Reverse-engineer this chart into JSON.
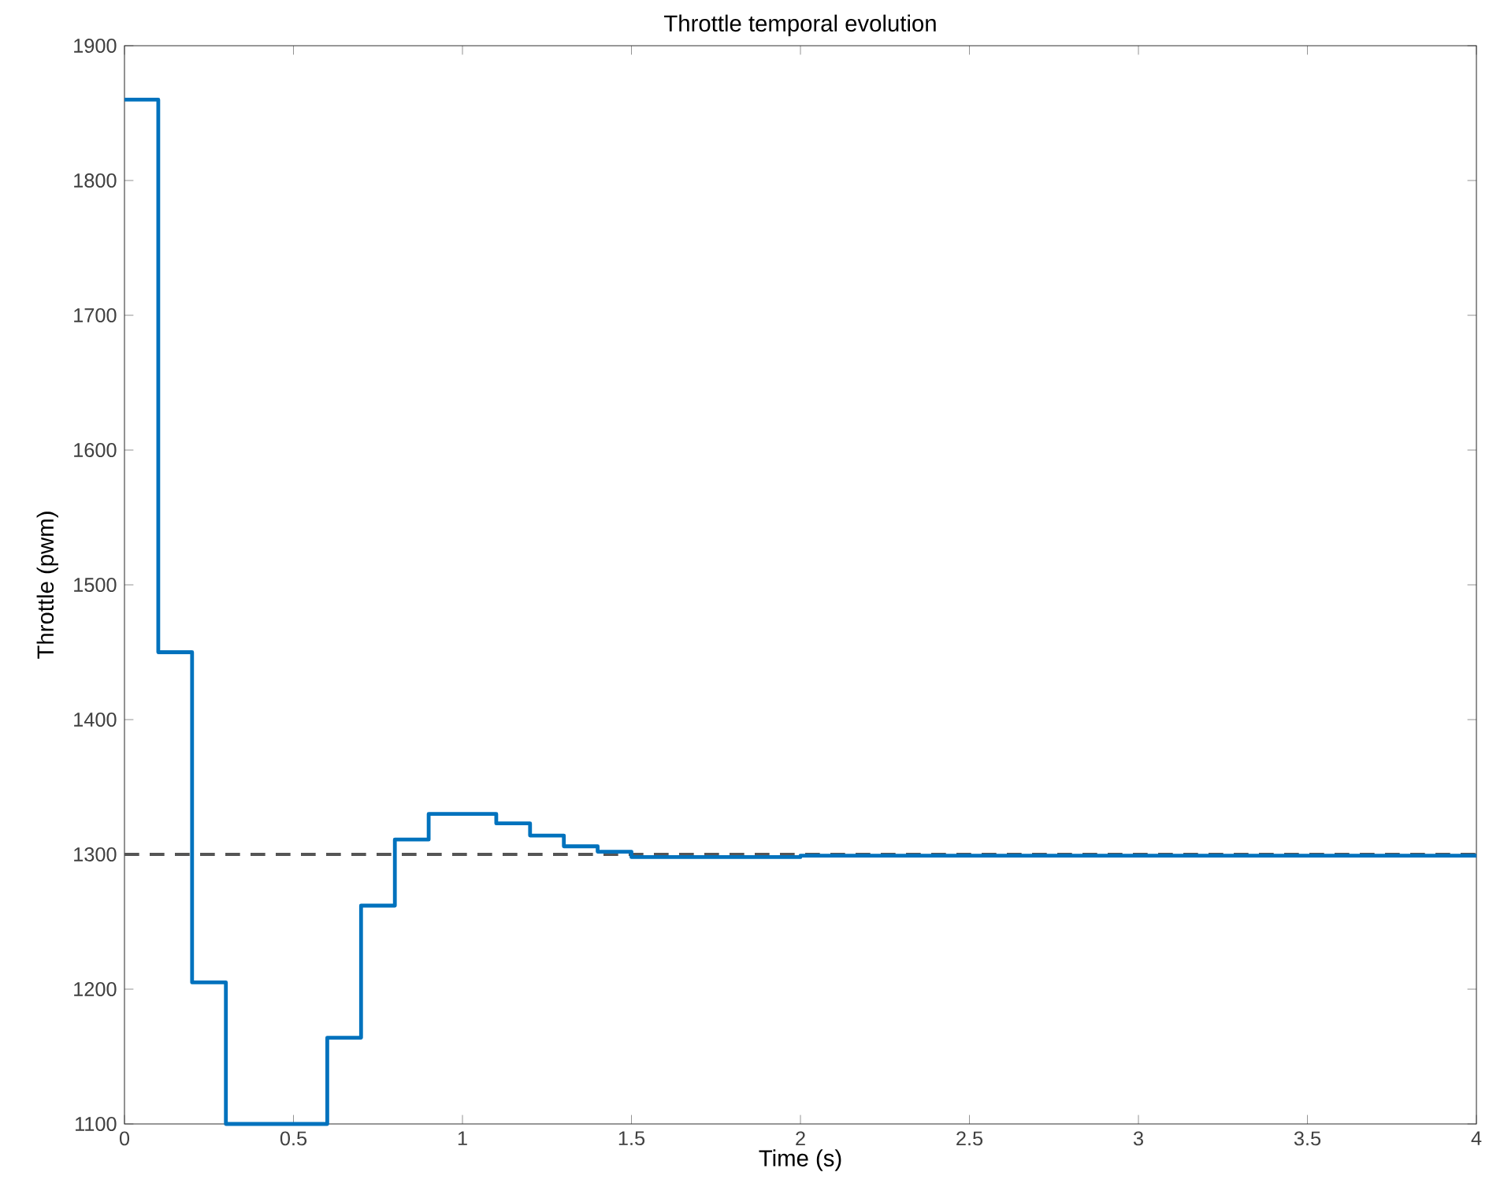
{
  "chart_data": {
    "type": "step",
    "title": "Throttle temporal evolution",
    "xlabel": "Time (s)",
    "ylabel": "Throttle (pwm)",
    "x": [
      0,
      0.1,
      0.2,
      0.3,
      0.6,
      0.7,
      0.8,
      0.9,
      1.1,
      1.2,
      1.3,
      1.4,
      1.5,
      2.0,
      4
    ],
    "series": [
      {
        "color": "#0072bd",
        "values": [
          1860,
          1450,
          1205,
          1100,
          1164,
          1262,
          1311,
          1330,
          1323,
          1314,
          1306,
          1302,
          1298,
          1299,
          1299
        ]
      }
    ],
    "xlim": [
      0,
      4
    ],
    "ylim": [
      1100,
      1900
    ],
    "xticks": [
      0,
      0.5,
      1,
      1.5,
      2,
      2.5,
      3,
      3.5,
      4
    ],
    "yticks": [
      1100,
      1200,
      1300,
      1400,
      1500,
      1600,
      1700,
      1800,
      1900
    ],
    "ref_lines": [
      {
        "axis": "y",
        "value": 1300,
        "color": "#555555",
        "line_style": "dashed"
      }
    ]
  }
}
